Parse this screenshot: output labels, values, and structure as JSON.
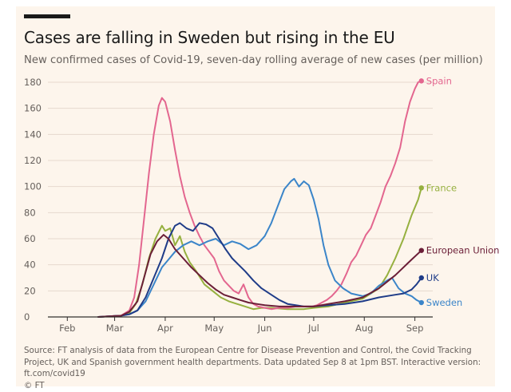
{
  "title": "Cases are falling in Sweden but rising in the EU",
  "subtitle": "New confirmed cases of Covid-19, seven-day rolling average of new cases (per million)",
  "source": "Source: FT analysis of data from the European Centre for Disease Prevention and Control, the Covid Tracking Project, UK and Spanish government health departments. Data updated Sep 8 at 1pm BST. Interactive version: ft.com/covid19",
  "credit": "© FT",
  "colors": {
    "background": "#fdf5ec",
    "grid": "#e6d9ce",
    "axis": "#33302e",
    "tick_text": "#66605c"
  },
  "chart_data": {
    "type": "line",
    "xlabel": "",
    "ylabel": "",
    "x_domain": [
      "2020-01-25",
      "2020-09-10"
    ],
    "ylim": [
      0,
      180
    ],
    "y_ticks": [
      0,
      20,
      40,
      60,
      80,
      100,
      120,
      140,
      160,
      180
    ],
    "x_ticks": [
      {
        "date": "2020-02-01",
        "label": "Feb"
      },
      {
        "date": "2020-03-01",
        "label": "Mar"
      },
      {
        "date": "2020-04-01",
        "label": "Apr"
      },
      {
        "date": "2020-05-01",
        "label": "May"
      },
      {
        "date": "2020-06-01",
        "label": "Jun"
      },
      {
        "date": "2020-07-01",
        "label": "Jul"
      },
      {
        "date": "2020-08-01",
        "label": "Aug"
      },
      {
        "date": "2020-09-01",
        "label": "Sep"
      }
    ],
    "grid": true,
    "legend": "inline labels at line ends",
    "series": [
      {
        "name": "Spain",
        "color": "#e3668f",
        "points": [
          [
            "2020-02-20",
            0
          ],
          [
            "2020-03-05",
            1
          ],
          [
            "2020-03-10",
            5
          ],
          [
            "2020-03-13",
            15
          ],
          [
            "2020-03-16",
            40
          ],
          [
            "2020-03-19",
            75
          ],
          [
            "2020-03-22",
            110
          ],
          [
            "2020-03-25",
            140
          ],
          [
            "2020-03-28",
            162
          ],
          [
            "2020-03-30",
            168
          ],
          [
            "2020-04-01",
            165
          ],
          [
            "2020-04-04",
            150
          ],
          [
            "2020-04-07",
            128
          ],
          [
            "2020-04-10",
            108
          ],
          [
            "2020-04-13",
            92
          ],
          [
            "2020-04-16",
            80
          ],
          [
            "2020-04-19",
            70
          ],
          [
            "2020-04-22",
            62
          ],
          [
            "2020-04-25",
            55
          ],
          [
            "2020-04-28",
            50
          ],
          [
            "2020-05-01",
            45
          ],
          [
            "2020-05-04",
            35
          ],
          [
            "2020-05-07",
            28
          ],
          [
            "2020-05-10",
            24
          ],
          [
            "2020-05-13",
            20
          ],
          [
            "2020-05-16",
            18
          ],
          [
            "2020-05-19",
            25
          ],
          [
            "2020-05-22",
            15
          ],
          [
            "2020-05-25",
            10
          ],
          [
            "2020-05-28",
            8
          ],
          [
            "2020-06-01",
            7
          ],
          [
            "2020-06-05",
            6
          ],
          [
            "2020-06-10",
            7
          ],
          [
            "2020-06-15",
            7
          ],
          [
            "2020-06-20",
            8
          ],
          [
            "2020-06-25",
            8
          ],
          [
            "2020-06-30",
            8
          ],
          [
            "2020-07-03",
            9
          ],
          [
            "2020-07-06",
            11
          ],
          [
            "2020-07-09",
            13
          ],
          [
            "2020-07-12",
            16
          ],
          [
            "2020-07-15",
            20
          ],
          [
            "2020-07-18",
            25
          ],
          [
            "2020-07-21",
            33
          ],
          [
            "2020-07-24",
            42
          ],
          [
            "2020-07-27",
            47
          ],
          [
            "2020-07-30",
            55
          ],
          [
            "2020-08-02",
            63
          ],
          [
            "2020-08-05",
            68
          ],
          [
            "2020-08-08",
            78
          ],
          [
            "2020-08-11",
            88
          ],
          [
            "2020-08-14",
            100
          ],
          [
            "2020-08-17",
            108
          ],
          [
            "2020-08-20",
            118
          ],
          [
            "2020-08-23",
            130
          ],
          [
            "2020-08-26",
            150
          ],
          [
            "2020-08-29",
            165
          ],
          [
            "2020-09-01",
            175
          ],
          [
            "2020-09-03",
            180
          ],
          [
            "2020-09-05",
            181
          ]
        ]
      },
      {
        "name": "France",
        "color": "#96b03f",
        "points": [
          [
            "2020-02-20",
            0
          ],
          [
            "2020-03-05",
            1
          ],
          [
            "2020-03-10",
            3
          ],
          [
            "2020-03-14",
            10
          ],
          [
            "2020-03-18",
            25
          ],
          [
            "2020-03-22",
            45
          ],
          [
            "2020-03-26",
            60
          ],
          [
            "2020-03-30",
            70
          ],
          [
            "2020-04-01",
            66
          ],
          [
            "2020-04-04",
            68
          ],
          [
            "2020-04-07",
            55
          ],
          [
            "2020-04-10",
            62
          ],
          [
            "2020-04-13",
            50
          ],
          [
            "2020-04-16",
            42
          ],
          [
            "2020-04-20",
            35
          ],
          [
            "2020-04-25",
            25
          ],
          [
            "2020-04-30",
            20
          ],
          [
            "2020-05-05",
            15
          ],
          [
            "2020-05-10",
            12
          ],
          [
            "2020-05-15",
            10
          ],
          [
            "2020-05-20",
            8
          ],
          [
            "2020-05-25",
            6
          ],
          [
            "2020-05-30",
            7
          ],
          [
            "2020-06-05",
            7
          ],
          [
            "2020-06-15",
            6
          ],
          [
            "2020-06-25",
            6
          ],
          [
            "2020-07-01",
            7
          ],
          [
            "2020-07-10",
            8
          ],
          [
            "2020-07-20",
            11
          ],
          [
            "2020-07-31",
            14
          ],
          [
            "2020-08-05",
            18
          ],
          [
            "2020-08-10",
            22
          ],
          [
            "2020-08-15",
            32
          ],
          [
            "2020-08-20",
            45
          ],
          [
            "2020-08-25",
            60
          ],
          [
            "2020-08-30",
            78
          ],
          [
            "2020-09-03",
            90
          ],
          [
            "2020-09-05",
            99
          ]
        ]
      },
      {
        "name": "European Union",
        "color": "#6b1e37",
        "points": [
          [
            "2020-02-20",
            0
          ],
          [
            "2020-03-05",
            1
          ],
          [
            "2020-03-10",
            4
          ],
          [
            "2020-03-15",
            12
          ],
          [
            "2020-03-19",
            30
          ],
          [
            "2020-03-23",
            48
          ],
          [
            "2020-03-27",
            58
          ],
          [
            "2020-03-31",
            63
          ],
          [
            "2020-04-03",
            60
          ],
          [
            "2020-04-07",
            52
          ],
          [
            "2020-04-12",
            45
          ],
          [
            "2020-04-17",
            38
          ],
          [
            "2020-04-22",
            32
          ],
          [
            "2020-04-27",
            26
          ],
          [
            "2020-05-02",
            21
          ],
          [
            "2020-05-07",
            17
          ],
          [
            "2020-05-12",
            15
          ],
          [
            "2020-05-17",
            13
          ],
          [
            "2020-05-22",
            11
          ],
          [
            "2020-05-27",
            10
          ],
          [
            "2020-06-01",
            9
          ],
          [
            "2020-06-10",
            8
          ],
          [
            "2020-06-20",
            8
          ],
          [
            "2020-07-01",
            8
          ],
          [
            "2020-07-10",
            10
          ],
          [
            "2020-07-20",
            12
          ],
          [
            "2020-07-31",
            15
          ],
          [
            "2020-08-10",
            22
          ],
          [
            "2020-08-20",
            32
          ],
          [
            "2020-08-30",
            44
          ],
          [
            "2020-09-05",
            51
          ]
        ]
      },
      {
        "name": "UK",
        "color": "#1f3c88",
        "points": [
          [
            "2020-02-20",
            0
          ],
          [
            "2020-03-05",
            1
          ],
          [
            "2020-03-10",
            2
          ],
          [
            "2020-03-15",
            5
          ],
          [
            "2020-03-20",
            15
          ],
          [
            "2020-03-25",
            30
          ],
          [
            "2020-03-30",
            45
          ],
          [
            "2020-04-03",
            60
          ],
          [
            "2020-04-07",
            70
          ],
          [
            "2020-04-10",
            72
          ],
          [
            "2020-04-14",
            68
          ],
          [
            "2020-04-18",
            66
          ],
          [
            "2020-04-22",
            72
          ],
          [
            "2020-04-26",
            71
          ],
          [
            "2020-04-30",
            68
          ],
          [
            "2020-05-04",
            60
          ],
          [
            "2020-05-08",
            52
          ],
          [
            "2020-05-12",
            45
          ],
          [
            "2020-05-16",
            40
          ],
          [
            "2020-05-20",
            35
          ],
          [
            "2020-05-25",
            28
          ],
          [
            "2020-05-30",
            22
          ],
          [
            "2020-06-05",
            17
          ],
          [
            "2020-06-10",
            13
          ],
          [
            "2020-06-15",
            10
          ],
          [
            "2020-06-20",
            9
          ],
          [
            "2020-06-25",
            8
          ],
          [
            "2020-07-01",
            8
          ],
          [
            "2020-07-10",
            9
          ],
          [
            "2020-07-20",
            10
          ],
          [
            "2020-07-31",
            12
          ],
          [
            "2020-08-10",
            15
          ],
          [
            "2020-08-20",
            17
          ],
          [
            "2020-08-25",
            18
          ],
          [
            "2020-08-30",
            21
          ],
          [
            "2020-09-02",
            25
          ],
          [
            "2020-09-05",
            30
          ]
        ]
      },
      {
        "name": "Sweden",
        "color": "#3b85c9",
        "points": [
          [
            "2020-02-20",
            0
          ],
          [
            "2020-03-05",
            1
          ],
          [
            "2020-03-10",
            2
          ],
          [
            "2020-03-15",
            5
          ],
          [
            "2020-03-20",
            12
          ],
          [
            "2020-03-25",
            25
          ],
          [
            "2020-03-30",
            38
          ],
          [
            "2020-04-03",
            44
          ],
          [
            "2020-04-07",
            50
          ],
          [
            "2020-04-12",
            55
          ],
          [
            "2020-04-17",
            58
          ],
          [
            "2020-04-22",
            55
          ],
          [
            "2020-04-27",
            58
          ],
          [
            "2020-05-02",
            60
          ],
          [
            "2020-05-07",
            55
          ],
          [
            "2020-05-12",
            58
          ],
          [
            "2020-05-17",
            56
          ],
          [
            "2020-05-22",
            52
          ],
          [
            "2020-05-27",
            55
          ],
          [
            "2020-06-01",
            62
          ],
          [
            "2020-06-05",
            72
          ],
          [
            "2020-06-09",
            85
          ],
          [
            "2020-06-13",
            98
          ],
          [
            "2020-06-17",
            104
          ],
          [
            "2020-06-19",
            106
          ],
          [
            "2020-06-22",
            100
          ],
          [
            "2020-06-25",
            104
          ],
          [
            "2020-06-28",
            101
          ],
          [
            "2020-07-01",
            90
          ],
          [
            "2020-07-04",
            75
          ],
          [
            "2020-07-07",
            55
          ],
          [
            "2020-07-10",
            40
          ],
          [
            "2020-07-14",
            28
          ],
          [
            "2020-07-19",
            22
          ],
          [
            "2020-07-24",
            18
          ],
          [
            "2020-07-31",
            16
          ],
          [
            "2020-08-05",
            18
          ],
          [
            "2020-08-10",
            24
          ],
          [
            "2020-08-15",
            28
          ],
          [
            "2020-08-18",
            30
          ],
          [
            "2020-08-22",
            22
          ],
          [
            "2020-08-26",
            18
          ],
          [
            "2020-08-30",
            16
          ],
          [
            "2020-09-02",
            13
          ],
          [
            "2020-09-05",
            11
          ]
        ]
      }
    ]
  }
}
